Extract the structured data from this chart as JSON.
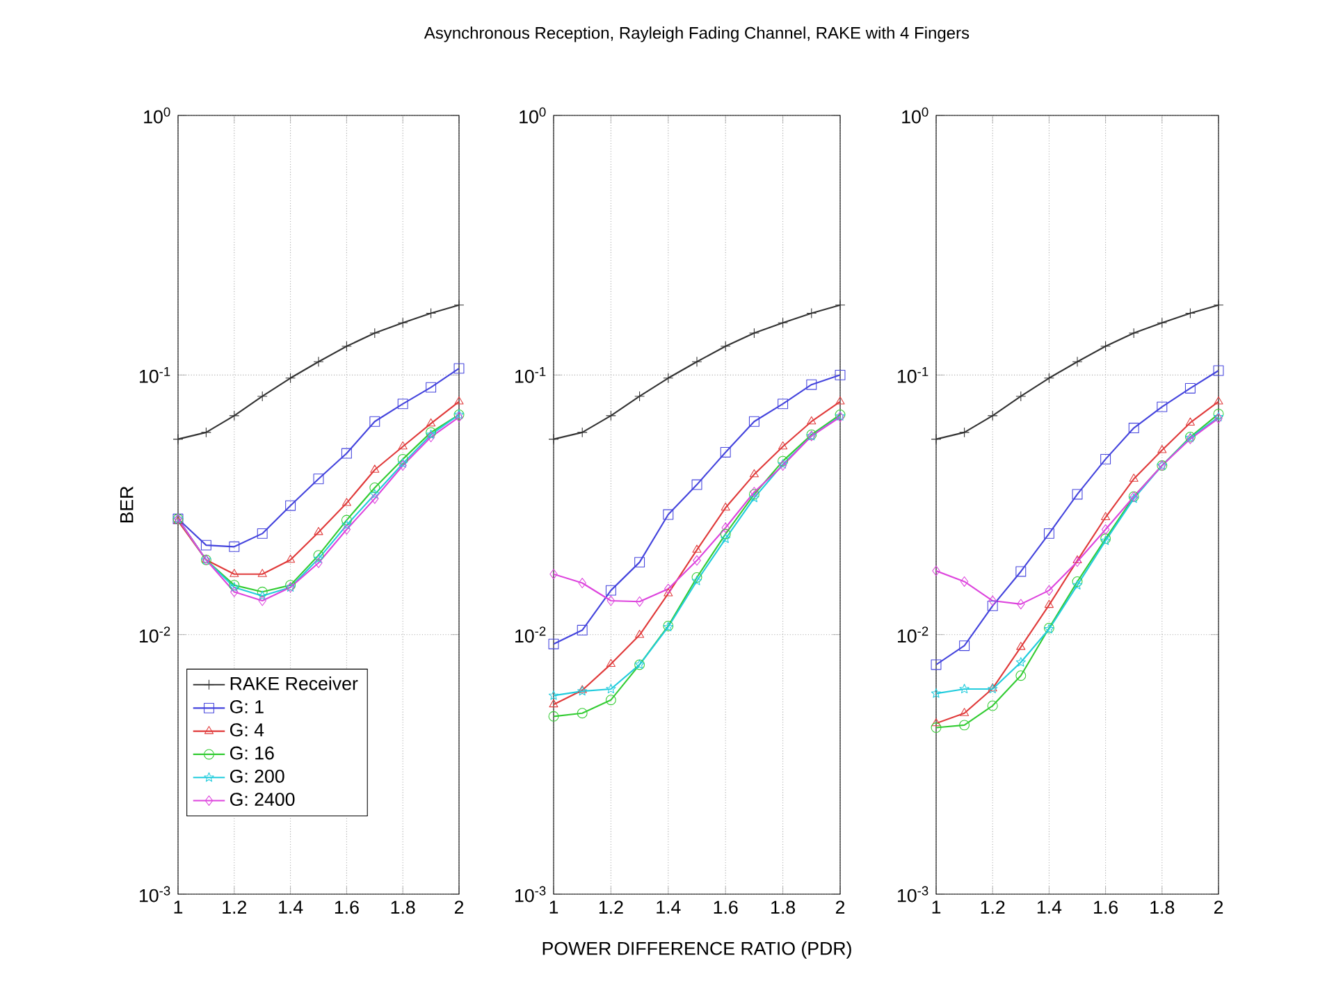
{
  "chart_data": [
    {
      "type": "line",
      "ylabel": "BER",
      "log": "y",
      "grid": true,
      "legend": "bottom left",
      "line_style": "solid",
      "xlim": [
        1,
        2
      ],
      "ylim": [
        0.001,
        1
      ],
      "xticks": [
        1,
        1.2,
        1.4,
        1.6,
        1.8,
        2
      ],
      "yticks": [
        {
          "value": 0.001,
          "label": "10$^{-3}$"
        },
        {
          "value": 0.01,
          "label": "10$^{-2}$"
        },
        {
          "value": 0.1,
          "label": "10$^{-1}$"
        },
        {
          "value": 1,
          "label": "10$^{0}$"
        }
      ],
      "x": [
        1,
        1.1,
        1.2,
        1.3,
        1.4,
        1.5,
        1.6,
        1.7,
        1.8,
        1.9,
        2
      ],
      "series": [
        {
          "name": "RAKE Receiver",
          "color": "#333333",
          "marker": "cross",
          "values": [
            0.0566,
            0.0601,
            0.0697,
            0.0828,
            0.0973,
            0.1125,
            0.129,
            0.145,
            0.159,
            0.173,
            0.186
          ]
        },
        {
          "name": "G: 1",
          "color": "#4444dd",
          "marker": "square",
          "values": [
            0.0279,
            0.0221,
            0.0218,
            0.0245,
            0.0314,
            0.0398,
            0.0499,
            0.0662,
            0.0774,
            0.0896,
            0.106
          ]
        },
        {
          "name": "G: 4",
          "color": "#e03a3a",
          "marker": "triangle",
          "values": [
            0.0274,
            0.0194,
            0.0171,
            0.0171,
            0.0194,
            0.0248,
            0.0321,
            0.0431,
            0.053,
            0.065,
            0.079
          ]
        },
        {
          "name": "G: 16",
          "color": "#33cc33",
          "marker": "circle",
          "values": [
            0.0279,
            0.0194,
            0.0155,
            0.0146,
            0.0155,
            0.0202,
            0.0276,
            0.0368,
            0.0474,
            0.0601,
            0.0703
          ]
        },
        {
          "name": "G: 200",
          "color": "#22ccdd",
          "marker": "star",
          "values": [
            0.0279,
            0.0194,
            0.0152,
            0.0141,
            0.0152,
            0.0196,
            0.0264,
            0.0347,
            0.0456,
            0.0589,
            0.0703
          ]
        },
        {
          "name": "G: 2400",
          "color": "#dd44dd",
          "marker": "diamond",
          "values": [
            0.0279,
            0.0194,
            0.0146,
            0.0135,
            0.0152,
            0.0189,
            0.0254,
            0.0334,
            0.0448,
            0.0577,
            0.0689
          ]
        }
      ]
    },
    {
      "type": "line",
      "title": "Asynchronous Reception, Rayleigh Fading Channel, RAKE with 4 Fingers",
      "xlabel": "POWER DIFFERENCE RATIO (PDR)",
      "log": "y",
      "grid": true,
      "line_style": "solid",
      "xlim": [
        1,
        2
      ],
      "ylim": [
        0.001,
        1
      ],
      "xticks": [
        1,
        1.2,
        1.4,
        1.6,
        1.8,
        2
      ],
      "yticks": [
        {
          "value": 0.001,
          "label": "10$^{-3}$"
        },
        {
          "value": 0.01,
          "label": "10$^{-2}$"
        },
        {
          "value": 0.1,
          "label": "10$^{-1}$"
        },
        {
          "value": 1,
          "label": "10$^{0}$"
        }
      ],
      "x": [
        1,
        1.1,
        1.2,
        1.3,
        1.4,
        1.5,
        1.6,
        1.7,
        1.8,
        1.9,
        2
      ],
      "series": [
        {
          "color": "#333333",
          "marker": "cross",
          "values": [
            0.0566,
            0.0601,
            0.0697,
            0.0828,
            0.0973,
            0.1125,
            0.129,
            0.145,
            0.159,
            0.173,
            0.186
          ]
        },
        {
          "color": "#4444dd",
          "marker": "square",
          "values": [
            0.0092,
            0.0104,
            0.0148,
            0.019,
            0.029,
            0.0378,
            0.0504,
            0.0662,
            0.0774,
            0.0918,
            0.1
          ]
        },
        {
          "color": "#e03a3a",
          "marker": "triangle",
          "values": [
            0.00538,
            0.0061,
            0.0077,
            0.00996,
            0.0144,
            0.0212,
            0.0308,
            0.0414,
            0.053,
            0.0662,
            0.079
          ]
        },
        {
          "color": "#33cc33",
          "marker": "circle",
          "values": [
            0.00484,
            0.00498,
            0.0056,
            0.00766,
            0.0108,
            0.0166,
            0.0244,
            0.0347,
            0.0466,
            0.0589,
            0.0703
          ]
        },
        {
          "color": "#22ccdd",
          "marker": "star",
          "values": [
            0.00582,
            0.00605,
            0.00617,
            0.00766,
            0.0107,
            0.0161,
            0.0234,
            0.0336,
            0.0453,
            0.0582,
            0.0694
          ]
        },
        {
          "color": "#dd44dd",
          "marker": "diamond",
          "values": [
            0.0171,
            0.0158,
            0.0135,
            0.0134,
            0.015,
            0.0193,
            0.0258,
            0.0354,
            0.0448,
            0.0582,
            0.0689
          ]
        }
      ]
    },
    {
      "type": "line",
      "log": "y",
      "grid": true,
      "line_style": "solid",
      "xlim": [
        1,
        2
      ],
      "ylim": [
        0.001,
        1
      ],
      "xticks": [
        1,
        1.2,
        1.4,
        1.6,
        1.8,
        2
      ],
      "yticks": [
        {
          "value": 0.001,
          "label": "10$^{-3}$"
        },
        {
          "value": 0.01,
          "label": "10$^{-2}$"
        },
        {
          "value": 0.1,
          "label": "10$^{-1}$"
        },
        {
          "value": 1,
          "label": "10$^{0}$"
        }
      ],
      "x": [
        1,
        1.1,
        1.2,
        1.3,
        1.4,
        1.5,
        1.6,
        1.7,
        1.8,
        1.9,
        2
      ],
      "series": [
        {
          "color": "#333333",
          "marker": "cross",
          "values": [
            0.0566,
            0.0601,
            0.0697,
            0.0828,
            0.0973,
            0.1125,
            0.129,
            0.145,
            0.159,
            0.173,
            0.186
          ]
        },
        {
          "color": "#4444dd",
          "marker": "square",
          "values": [
            0.00766,
            0.00906,
            0.0129,
            0.0175,
            0.0245,
            0.0347,
            0.0474,
            0.0625,
            0.0754,
            0.0889,
            0.104
          ]
        },
        {
          "color": "#e03a3a",
          "marker": "triangle",
          "values": [
            0.00455,
            0.00498,
            0.0062,
            0.00895,
            0.013,
            0.0193,
            0.0283,
            0.0398,
            0.0513,
            0.0655,
            0.079
          ]
        },
        {
          "color": "#33cc33",
          "marker": "circle",
          "values": [
            0.00438,
            0.00448,
            0.00532,
            0.00695,
            0.0106,
            0.016,
            0.0234,
            0.034,
            0.0448,
            0.0577,
            0.0708
          ]
        },
        {
          "color": "#22ccdd",
          "marker": "star",
          "values": [
            0.00593,
            0.00617,
            0.00617,
            0.00782,
            0.0105,
            0.0155,
            0.023,
            0.0334,
            0.0448,
            0.0573,
            0.0689
          ]
        },
        {
          "color": "#dd44dd",
          "marker": "diamond",
          "values": [
            0.0176,
            0.016,
            0.0135,
            0.0131,
            0.0148,
            0.0191,
            0.0254,
            0.034,
            0.0448,
            0.0567,
            0.0681
          ]
        }
      ]
    }
  ]
}
